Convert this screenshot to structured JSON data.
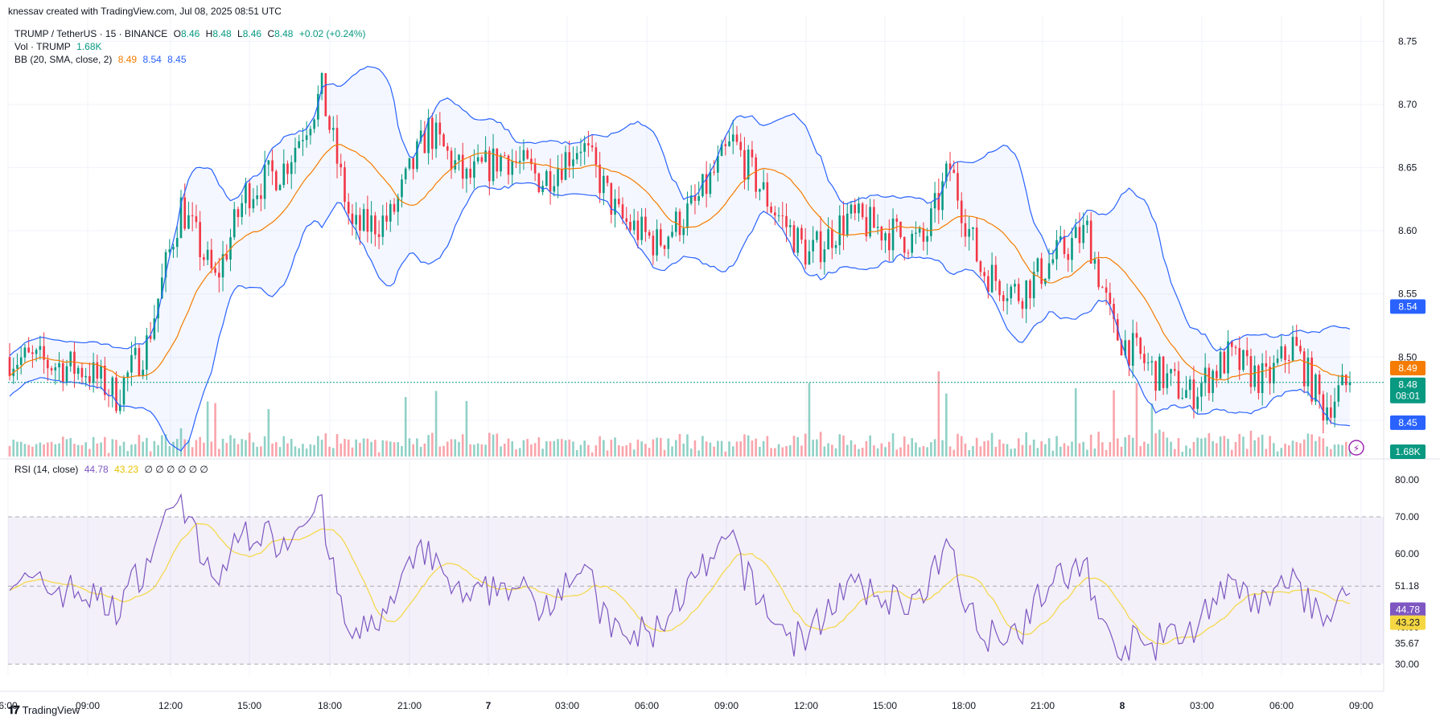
{
  "attribution": "knessav created with TradingView.com, Jul 08, 2025 08:51 UTC",
  "legend": {
    "symbol": "TRUMP / TetherUS · 15 · BINANCE",
    "o_label": "O",
    "o": "8.46",
    "h_label": "H",
    "h": "8.48",
    "l_label": "L",
    "l": "8.46",
    "c_label": "C",
    "c": "8.48",
    "change": "+0.02 (+0.24%)",
    "vol_label": "Vol · TRUMP",
    "vol": "1.68K",
    "bb_label": "BB (20, SMA, close, 2)",
    "bb_mid": "8.49",
    "bb_upper": "8.54",
    "bb_lower": "8.45",
    "rsi_label": "RSI (14, close)",
    "rsi": "44.78",
    "rsi_ma": "43.23",
    "rsi_extra": "∅ ∅ ∅ ∅ ∅ ∅"
  },
  "badges": {
    "bb_upper": "8.54",
    "bb_mid": "8.49",
    "price": "8.48",
    "countdown": "08:01",
    "bb_lower": "8.45",
    "volume": "1.68K",
    "rsi": "44.78",
    "rsi_ma": "43.23"
  },
  "price_axis": [
    "8.75",
    "8.70",
    "8.65",
    "8.60",
    "8.55",
    "8.50",
    "8.45"
  ],
  "rsi_axis": [
    "80.00",
    "70.00",
    "60.00",
    "51.18",
    "40.00",
    "35.67",
    "30.00"
  ],
  "time_axis": [
    "6:00",
    "09:00",
    "12:00",
    "15:00",
    "18:00",
    "21:00",
    "7",
    "03:00",
    "06:00",
    "09:00",
    "12:00",
    "15:00",
    "18:00",
    "21:00",
    "8",
    "03:00",
    "06:00",
    "09:00"
  ],
  "logo_text": "TradingView",
  "colors": {
    "up": "#089981",
    "down": "#f23645",
    "bb": "#2962ff",
    "basis": "#f57c00",
    "rsi": "#7e57c2",
    "rsi_ma": "#f5d742"
  },
  "chart_data": {
    "type": "candlestick",
    "symbol": "TRUMP / TetherUS",
    "interval": "15",
    "price_ylim": [
      8.42,
      8.77
    ],
    "rsi_ylim": [
      27,
      82
    ],
    "bands": {
      "upper": "8.54",
      "basis": "8.49",
      "lower": "8.45"
    },
    "last_close": 8.48,
    "rsi_levels": [
      70,
      51.18,
      30
    ]
  }
}
